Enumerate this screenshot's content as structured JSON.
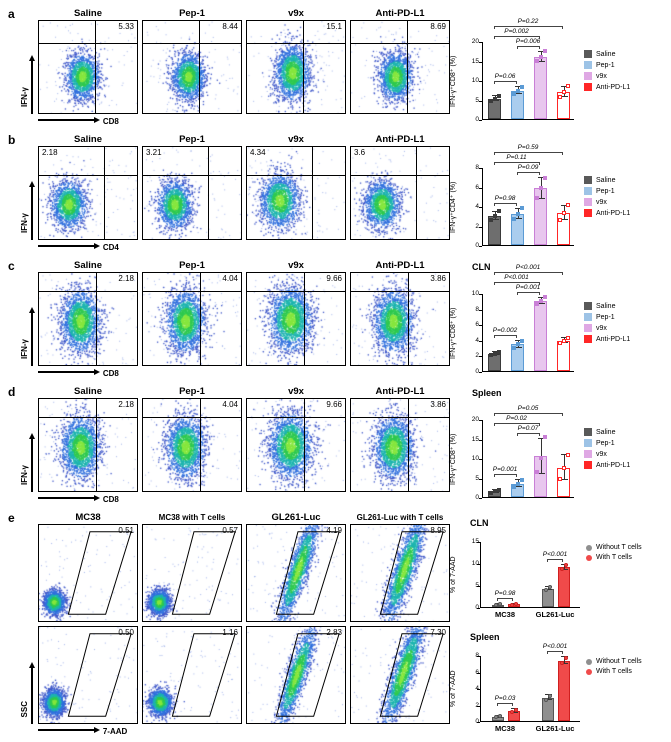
{
  "panels": [
    {
      "label": "a",
      "x_axis": "CD8",
      "y_axis": "IFN-γ",
      "plots": [
        {
          "title": "Saline",
          "value": "5.33"
        },
        {
          "title": "Pep-1",
          "value": "8.44"
        },
        {
          "title": "v9x",
          "value": "15.1"
        },
        {
          "title": "Anti-PD-L1",
          "value": "8.69"
        }
      ]
    },
    {
      "label": "b",
      "x_axis": "CD4",
      "y_axis": "IFN-γ",
      "plots": [
        {
          "title": "Saline",
          "value": "2.18"
        },
        {
          "title": "Pep-1",
          "value": "3.21"
        },
        {
          "title": "v9x",
          "value": "4.34"
        },
        {
          "title": "Anti-PD-L1",
          "value": "3.6"
        }
      ]
    },
    {
      "label": "c",
      "x_axis": "CD8",
      "y_axis": "IFN-γ",
      "plots": [
        {
          "title": "Saline",
          "value": "2.18"
        },
        {
          "title": "Pep-1",
          "value": "4.04"
        },
        {
          "title": "v9x",
          "value": "9.66"
        },
        {
          "title": "Anti-PD-L1",
          "value": "3.86"
        }
      ]
    },
    {
      "label": "d",
      "x_axis": "CD8",
      "y_axis": "IFN-γ",
      "plots": [
        {
          "title": "Saline",
          "value": "2.18"
        },
        {
          "title": "Pep-1",
          "value": "4.04"
        },
        {
          "title": "v9x",
          "value": "9.66"
        },
        {
          "title": "Anti-PD-L1",
          "value": "3.86"
        }
      ]
    },
    {
      "label": "e",
      "x_axis": "7-AAD",
      "y_axis": "SSC",
      "plots": [
        {
          "title": "MC38",
          "value": "0.51"
        },
        {
          "title": "MC38 with T cells",
          "value": "0.57"
        },
        {
          "title": "GL261-Luc",
          "value": "4.19"
        },
        {
          "title": "GL261-Luc with T cells",
          "value": "8.95"
        },
        {
          "title": "",
          "value": "0.50"
        },
        {
          "title": "",
          "value": "1.16"
        },
        {
          "title": "",
          "value": "2.83"
        },
        {
          "title": "",
          "value": "7.30"
        }
      ]
    }
  ],
  "chart_data": [
    {
      "type": "bar",
      "panel": "a",
      "title": "",
      "ylabel": "IFN-γ⁺CD8⁺ (%)",
      "ylim": [
        0,
        20
      ],
      "yticks": [
        0,
        5,
        10,
        15,
        20
      ],
      "categories": [
        "Saline",
        "Pep-1",
        "v9x",
        "Anti-PD-L1"
      ],
      "values": [
        5.2,
        7.2,
        16,
        7
      ],
      "errors": [
        0.7,
        0.9,
        1.3,
        1.3
      ],
      "points": [
        [
          4.6,
          5.2,
          5.9
        ],
        [
          6.4,
          7.3,
          8.3
        ],
        [
          14.8,
          16,
          17.4
        ],
        [
          5.6,
          7,
          8.4
        ]
      ],
      "bar_fill": [
        "#6e6e6e",
        "#aacdee",
        "#e8c6ee",
        "#ffffff"
      ],
      "bar_border": [
        "#3a3a3a",
        "#5b9bd5",
        "#c97fd6",
        "#ff2626"
      ],
      "brackets": [
        {
          "from": 0,
          "to": 1,
          "label": "P=0.06",
          "level": 0
        },
        {
          "from": 1,
          "to": 2,
          "label": "P=0.006",
          "level": 0
        },
        {
          "from": 0,
          "to": 2,
          "label": "P=0.002",
          "level": 1
        },
        {
          "from": 0,
          "to": 3,
          "label": "P=0.22",
          "level": 2
        }
      ],
      "legend": [
        {
          "label": "Saline",
          "color": "#595959"
        },
        {
          "label": "Pep-1",
          "color": "#9dc3e6"
        },
        {
          "label": "v9x",
          "color": "#dfa8e4"
        },
        {
          "label": "Anti-PD-L1",
          "color": "#ff2626"
        }
      ]
    },
    {
      "type": "bar",
      "panel": "b",
      "title": "",
      "ylabel": "IFN-γ⁺CD4⁺ (%)",
      "ylim": [
        0,
        8
      ],
      "yticks": [
        0,
        2,
        4,
        6,
        8
      ],
      "categories": [
        "Saline",
        "Pep-1",
        "v9x",
        "Anti-PD-L1"
      ],
      "values": [
        3.0,
        3.2,
        5.8,
        3.3
      ],
      "errors": [
        0.4,
        0.5,
        1.1,
        0.7
      ],
      "points": [
        [
          2.6,
          3,
          3.5
        ],
        [
          2.7,
          3.2,
          3.8
        ],
        [
          4.8,
          5.8,
          6.9
        ],
        [
          2.6,
          3.3,
          4.1
        ]
      ],
      "bar_fill": [
        "#6e6e6e",
        "#aacdee",
        "#e8c6ee",
        "#ffffff"
      ],
      "bar_border": [
        "#3a3a3a",
        "#5b9bd5",
        "#c97fd6",
        "#ff2626"
      ],
      "brackets": [
        {
          "from": 0,
          "to": 1,
          "label": "P=0.98",
          "level": 0
        },
        {
          "from": 1,
          "to": 2,
          "label": "P=0.09",
          "level": 0
        },
        {
          "from": 0,
          "to": 2,
          "label": "P=0.11",
          "level": 1
        },
        {
          "from": 0,
          "to": 3,
          "label": "P=0.59",
          "level": 2
        }
      ],
      "legend": [
        {
          "label": "Saline",
          "color": "#595959"
        },
        {
          "label": "Pep-1",
          "color": "#9dc3e6"
        },
        {
          "label": "v9x",
          "color": "#dfa8e4"
        },
        {
          "label": "Anti-PD-L1",
          "color": "#ff2626"
        }
      ]
    },
    {
      "type": "bar",
      "panel": "c",
      "title": "CLN",
      "ylabel": "IFN-γ⁺CD8⁺ (%)",
      "ylim": [
        0,
        10
      ],
      "yticks": [
        0,
        2,
        4,
        6,
        8,
        10
      ],
      "categories": [
        "Saline",
        "Pep-1",
        "v9x",
        "Anti-PD-L1"
      ],
      "values": [
        2.2,
        3.4,
        9,
        3.9
      ],
      "errors": [
        0.2,
        0.4,
        0.4,
        0.3
      ],
      "points": [
        [
          2,
          2.2,
          2.5
        ],
        [
          3,
          3.4,
          3.9
        ],
        [
          8.6,
          9,
          9.5
        ],
        [
          3.6,
          3.9,
          4.2
        ]
      ],
      "bar_fill": [
        "#6e6e6e",
        "#aacdee",
        "#e8c6ee",
        "#ffffff"
      ],
      "bar_border": [
        "#3a3a3a",
        "#5b9bd5",
        "#c97fd6",
        "#ff2626"
      ],
      "brackets": [
        {
          "from": 0,
          "to": 1,
          "label": "P=0.002",
          "level": 0
        },
        {
          "from": 1,
          "to": 2,
          "label": "P=0.001",
          "level": 0
        },
        {
          "from": 0,
          "to": 2,
          "label": "P<0.001",
          "level": 1
        },
        {
          "from": 0,
          "to": 3,
          "label": "P<0.001",
          "level": 2
        }
      ],
      "legend": [
        {
          "label": "Saline",
          "color": "#595959"
        },
        {
          "label": "Pep-1",
          "color": "#9dc3e6"
        },
        {
          "label": "v9x",
          "color": "#dfa8e4"
        },
        {
          "label": "Anti-PD-L1",
          "color": "#ff2626"
        }
      ]
    },
    {
      "type": "bar",
      "panel": "d",
      "title": "Spleen",
      "ylabel": "IFN-γ⁺CD8⁺ (%)",
      "ylim": [
        0,
        20
      ],
      "yticks": [
        0,
        5,
        10,
        15,
        20
      ],
      "categories": [
        "Saline",
        "Pep-1",
        "v9x",
        "Anti-PD-L1"
      ],
      "values": [
        1.5,
        3.4,
        10.5,
        7.5
      ],
      "errors": [
        0.4,
        0.9,
        4.5,
        3.2
      ],
      "points": [
        [
          1.1,
          1.5,
          1.9
        ],
        [
          2.6,
          3.4,
          4.3
        ],
        [
          6.5,
          10,
          15.5
        ],
        [
          4.5,
          7.5,
          10.8
        ]
      ],
      "bar_fill": [
        "#6e6e6e",
        "#aacdee",
        "#e8c6ee",
        "#ffffff"
      ],
      "bar_border": [
        "#3a3a3a",
        "#5b9bd5",
        "#c97fd6",
        "#ff2626"
      ],
      "brackets": [
        {
          "from": 0,
          "to": 1,
          "label": "P=0.001",
          "level": 0
        },
        {
          "from": 1,
          "to": 2,
          "label": "P=0.07",
          "level": 0
        },
        {
          "from": 0,
          "to": 2,
          "label": "P=0.02",
          "level": 1
        },
        {
          "from": 0,
          "to": 3,
          "label": "P=0.05",
          "level": 2
        }
      ],
      "legend": [
        {
          "label": "Saline",
          "color": "#595959"
        },
        {
          "label": "Pep-1",
          "color": "#9dc3e6"
        },
        {
          "label": "v9x",
          "color": "#dfa8e4"
        },
        {
          "label": "Anti-PD-L1",
          "color": "#ff2626"
        }
      ]
    },
    {
      "type": "grouped-bar",
      "panel": "e",
      "title": "CLN",
      "ylabel": "% of 7-AAD",
      "ylim": [
        0,
        15
      ],
      "yticks": [
        0,
        5,
        10,
        15
      ],
      "categories": [
        "MC38",
        "GL261-Luc"
      ],
      "series": [
        {
          "name": "Without T cells",
          "color": "#8f8f8f",
          "border": "#555555",
          "values": [
            0.5,
            4.2
          ],
          "errors": [
            0.1,
            0.4
          ],
          "points": [
            [
              0.4,
              0.6
            ],
            [
              3.9,
              4.5
            ]
          ]
        },
        {
          "name": "With T cells",
          "color": "#f04a4a",
          "border": "#d01f1f",
          "values": [
            0.6,
            9.0
          ],
          "errors": [
            0.15,
            0.5
          ],
          "points": [
            [
              0.5,
              0.75
            ],
            [
              8.6,
              9.6
            ]
          ]
        }
      ],
      "group_brackets": [
        {
          "group": 0,
          "label": "P=0.98"
        },
        {
          "group": 1,
          "label": "P<0.001"
        }
      ]
    },
    {
      "type": "grouped-bar",
      "panel": "e",
      "title": "Spleen",
      "ylabel": "% of 7-AAD",
      "ylim": [
        0,
        8
      ],
      "yticks": [
        0,
        2,
        4,
        6,
        8
      ],
      "categories": [
        "MC38",
        "GL261-Luc"
      ],
      "series": [
        {
          "name": "Without T cells",
          "color": "#8f8f8f",
          "border": "#555555",
          "values": [
            0.5,
            2.8
          ],
          "errors": [
            0.1,
            0.3
          ],
          "points": [
            [
              0.45,
              0.6
            ],
            [
              2.6,
              3.0
            ]
          ]
        },
        {
          "name": "With T cells",
          "color": "#f04a4a",
          "border": "#d01f1f",
          "values": [
            1.2,
            7.3
          ],
          "errors": [
            0.2,
            0.4
          ],
          "points": [
            [
              1.05,
              1.35
            ],
            [
              7.0,
              7.6
            ]
          ]
        }
      ],
      "group_brackets": [
        {
          "group": 0,
          "label": "P=0.03"
        },
        {
          "group": 1,
          "label": "P<0.001"
        }
      ]
    }
  ]
}
